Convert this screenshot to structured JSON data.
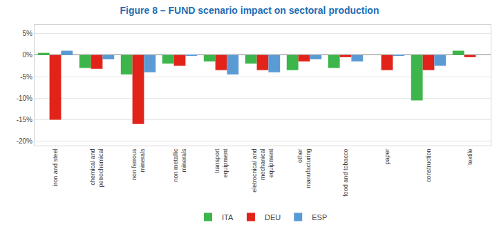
{
  "chart_data": {
    "type": "bar",
    "title": "Figure 8 – FUND scenario impact on sectoral production",
    "categories": [
      "iron and steel",
      "chemical and\npetrochemical",
      "non ferrous\nminerals",
      "non metallic\nminerals",
      "transport\nequipment",
      "eletrocnical and\nmechanical\nequipment",
      "other\nmanufacturing",
      "food and tobacco",
      "paper",
      "construction",
      "textile"
    ],
    "series": [
      {
        "name": "ITA",
        "color": "#3cb54a",
        "values": [
          0.5,
          -3.0,
          -4.5,
          -2.0,
          -1.5,
          -2.0,
          -3.5,
          -3.0,
          0.0,
          -10.5,
          1.0
        ]
      },
      {
        "name": "DEU",
        "color": "#e2231a",
        "values": [
          -15.0,
          -3.2,
          -16.0,
          -2.5,
          -3.5,
          -3.5,
          -1.5,
          -0.5,
          -3.5,
          -3.5,
          -0.5
        ]
      },
      {
        "name": "ESP",
        "color": "#5b9bd5",
        "values": [
          1.0,
          -1.0,
          -4.0,
          -0.2,
          -4.5,
          -4.0,
          -1.0,
          -1.5,
          -0.2,
          -2.5,
          0.0
        ]
      }
    ],
    "ylim": [
      -21,
      7
    ],
    "yticks": [
      {
        "value": 5,
        "label": "5%"
      },
      {
        "value": 0,
        "label": "0%"
      },
      {
        "value": -5,
        "label": "-5%"
      },
      {
        "value": -10,
        "label": "-10%"
      },
      {
        "value": -15,
        "label": "-15%"
      },
      {
        "value": -20,
        "label": "-20%"
      }
    ],
    "grid": true,
    "legend": "bottom"
  }
}
